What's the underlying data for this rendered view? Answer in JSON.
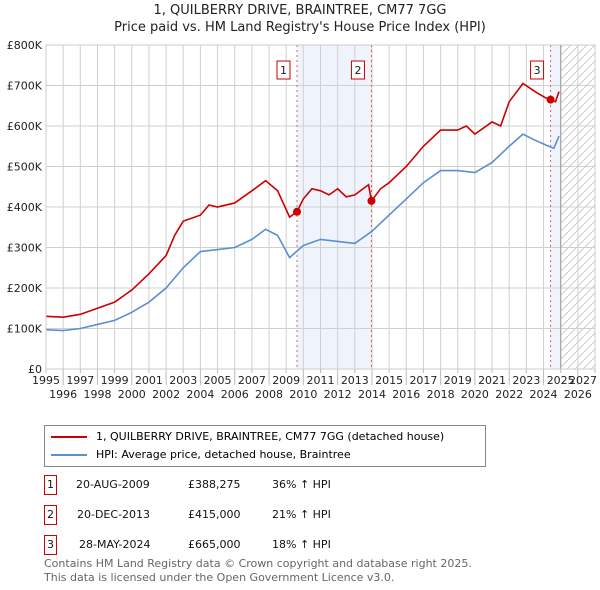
{
  "title": "1, QUILBERRY DRIVE, BRAINTREE, CM77 7GG",
  "subtitle": "Price paid vs. HM Land Registry's House Price Index (HPI)",
  "chart_data": {
    "type": "line",
    "xlim": [
      1995,
      2027
    ],
    "ylim": [
      0,
      800000
    ],
    "x_ticks": [
      "1995",
      "1996",
      "1997",
      "1998",
      "1999",
      "2000",
      "2001",
      "2002",
      "2003",
      "2004",
      "2005",
      "2006",
      "2007",
      "2008",
      "2009",
      "2010",
      "2011",
      "2012",
      "2013",
      "2014",
      "2015",
      "2016",
      "2017",
      "2018",
      "2019",
      "2020",
      "2021",
      "2022",
      "2023",
      "2024",
      "2025",
      "2026",
      "2027"
    ],
    "y_ticks": [
      {
        "v": 0,
        "l": "£0"
      },
      {
        "v": 100000,
        "l": "£100K"
      },
      {
        "v": 200000,
        "l": "£200K"
      },
      {
        "v": 300000,
        "l": "£300K"
      },
      {
        "v": 400000,
        "l": "£400K"
      },
      {
        "v": 500000,
        "l": "£500K"
      },
      {
        "v": 600000,
        "l": "£600K"
      },
      {
        "v": 700000,
        "l": "£700K"
      },
      {
        "v": 800000,
        "l": "£800K"
      }
    ],
    "series": [
      {
        "name": "1, QUILBERRY DRIVE, BRAINTREE, CM77 7GG (detached house)",
        "color": "#cc0000",
        "x": [
          1995,
          1996,
          1997,
          1998,
          1999,
          2000,
          2001,
          2002,
          2002.5,
          2003,
          2004,
          2004.5,
          2005,
          2006,
          2007,
          2007.8,
          2008.5,
          2009.2,
          2009.63,
          2010,
          2010.5,
          2011,
          2011.5,
          2012,
          2012.5,
          2013,
          2013.8,
          2013.97,
          2014.5,
          2015,
          2016,
          2017,
          2018,
          2019,
          2019.5,
          2020,
          2021,
          2021.5,
          2022,
          2022.8,
          2023.5,
          2024.1,
          2024.41,
          2024.7,
          2024.9
        ],
        "y": [
          130000,
          128000,
          135000,
          150000,
          165000,
          195000,
          235000,
          280000,
          330000,
          365000,
          380000,
          405000,
          400000,
          410000,
          440000,
          465000,
          440000,
          375000,
          388275,
          420000,
          445000,
          440000,
          430000,
          445000,
          425000,
          430000,
          455000,
          415000,
          445000,
          460000,
          500000,
          550000,
          590000,
          590000,
          600000,
          580000,
          610000,
          600000,
          660000,
          705000,
          685000,
          670000,
          665000,
          660000,
          685000
        ]
      },
      {
        "name": "HPI: Average price, detached house, Braintree",
        "color": "#5b8fd0",
        "x": [
          1995,
          1996,
          1997,
          1998,
          1999,
          2000,
          2001,
          2002,
          2003,
          2004,
          2005,
          2006,
          2007,
          2007.8,
          2008.5,
          2009.2,
          2010,
          2011,
          2012,
          2013,
          2014,
          2015,
          2016,
          2017,
          2018,
          2019,
          2020,
          2021,
          2022,
          2022.8,
          2023.5,
          2024.3,
          2024.6,
          2024.9
        ],
        "y": [
          97000,
          95000,
          100000,
          110000,
          120000,
          140000,
          165000,
          200000,
          250000,
          290000,
          295000,
          300000,
          320000,
          345000,
          330000,
          275000,
          305000,
          320000,
          315000,
          310000,
          340000,
          380000,
          420000,
          460000,
          490000,
          490000,
          485000,
          510000,
          550000,
          580000,
          565000,
          550000,
          545000,
          575000
        ]
      }
    ],
    "sales": [
      {
        "label": "1",
        "x": 2009.63,
        "y": 388275
      },
      {
        "label": "2",
        "x": 2013.97,
        "y": 415000
      },
      {
        "label": "3",
        "x": 2024.41,
        "y": 665000
      }
    ],
    "shaded": [
      [
        2009.63,
        2013.97
      ],
      [
        2024.41,
        2025.0
      ]
    ],
    "hatched_from": 2025.0
  },
  "legend": {
    "red": "1, QUILBERRY DRIVE, BRAINTREE, CM77 7GG (detached house)",
    "blue": "HPI: Average price, detached house, Braintree"
  },
  "table": [
    {
      "n": "1",
      "date": "20-AUG-2009",
      "price": "£388,275",
      "hpi": "36% ↑ HPI"
    },
    {
      "n": "2",
      "date": "20-DEC-2013",
      "price": "£415,000",
      "hpi": "21% ↑ HPI"
    },
    {
      "n": "3",
      "date": "28-MAY-2024",
      "price": "£665,000",
      "hpi": "18% ↑ HPI"
    }
  ],
  "footer": [
    "Contains HM Land Registry data © Crown copyright and database right 2025.",
    "This data is licensed under the Open Government Licence v3.0."
  ]
}
